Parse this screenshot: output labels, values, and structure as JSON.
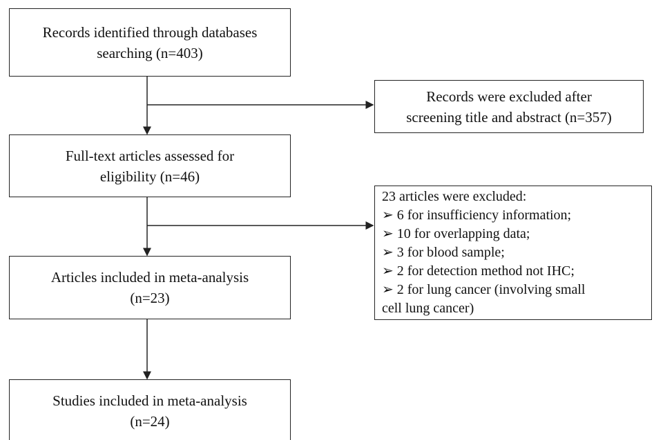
{
  "nodes": [
    {
      "lines": [
        "Records identified through databases",
        "searching (n=403)"
      ]
    },
    {
      "lines": [
        "Records were excluded after",
        "screening title and abstract (n=357)"
      ]
    },
    {
      "lines": [
        "Full-text articles assessed for",
        "eligibility  (n=46)"
      ]
    },
    {
      "lines": [
        "23 articles were excluded:",
        "6 for insufficiency information;",
        "10 for overlapping data;",
        "3 for blood sample;",
        "2 for detection method not IHC;",
        "2 for lung cancer (involving small",
        "cell lung cancer)"
      ]
    },
    {
      "lines": [
        "Articles included in meta-analysis",
        "(n=23)"
      ]
    },
    {
      "lines": [
        "Studies included in meta-analysis",
        "(n=24)"
      ]
    }
  ]
}
